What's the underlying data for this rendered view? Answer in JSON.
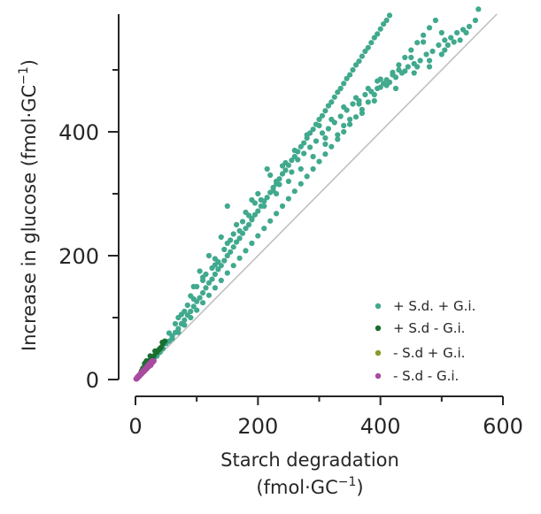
{
  "chart_data": {
    "type": "scatter",
    "title": "",
    "xlabel_line1": "Starch degradation",
    "xlabel_line2": "(fmol·GC",
    "xlabel_sup": "−1",
    "xlabel_close": ")",
    "ylabel_main": "Increase in glucose (fmol·GC",
    "ylabel_sup": "−1",
    "ylabel_close": ")",
    "xlim": [
      0,
      600
    ],
    "ylim": [
      0,
      590
    ],
    "x_ticks": [
      0,
      200,
      400,
      600
    ],
    "x_minor_ticks": [
      100,
      300,
      500
    ],
    "y_ticks": [
      0,
      200,
      400
    ],
    "y_minor_ticks": [
      100,
      300,
      500
    ],
    "reference_line": {
      "label": "",
      "x": [
        0,
        600
      ],
      "y": [
        0,
        600
      ],
      "color": "#c0c0c0"
    },
    "legend_position": "lower-right",
    "grid": false,
    "series": [
      {
        "name": "+ S.d. + G.i.",
        "color": "#41a98e",
        "points": [
          [
            20,
            22
          ],
          [
            25,
            27
          ],
          [
            30,
            34
          ],
          [
            35,
            38
          ],
          [
            40,
            44
          ],
          [
            45,
            50
          ],
          [
            50,
            58
          ],
          [
            55,
            62
          ],
          [
            60,
            70
          ],
          [
            65,
            76
          ],
          [
            70,
            82
          ],
          [
            75,
            90
          ],
          [
            80,
            96
          ],
          [
            85,
            104
          ],
          [
            90,
            110
          ],
          [
            95,
            118
          ],
          [
            100,
            126
          ],
          [
            105,
            132
          ],
          [
            110,
            140
          ],
          [
            115,
            148
          ],
          [
            120,
            156
          ],
          [
            125,
            162
          ],
          [
            130,
            170
          ],
          [
            135,
            178
          ],
          [
            140,
            184
          ],
          [
            145,
            192
          ],
          [
            150,
            200
          ],
          [
            155,
            206
          ],
          [
            160,
            214
          ],
          [
            165,
            222
          ],
          [
            170,
            228
          ],
          [
            175,
            236
          ],
          [
            180,
            244
          ],
          [
            185,
            250
          ],
          [
            190,
            258
          ],
          [
            195,
            266
          ],
          [
            200,
            272
          ],
          [
            205,
            280
          ],
          [
            210,
            288
          ],
          [
            215,
            294
          ],
          [
            220,
            302
          ],
          [
            225,
            310
          ],
          [
            230,
            316
          ],
          [
            235,
            324
          ],
          [
            240,
            332
          ],
          [
            245,
            338
          ],
          [
            250,
            346
          ],
          [
            255,
            354
          ],
          [
            260,
            360
          ],
          [
            265,
            368
          ],
          [
            270,
            376
          ],
          [
            275,
            382
          ],
          [
            280,
            390
          ],
          [
            285,
            398
          ],
          [
            290,
            404
          ],
          [
            295,
            412
          ],
          [
            300,
            420
          ],
          [
            305,
            426
          ],
          [
            310,
            434
          ],
          [
            315,
            442
          ],
          [
            320,
            448
          ],
          [
            325,
            456
          ],
          [
            330,
            464
          ],
          [
            335,
            470
          ],
          [
            340,
            478
          ],
          [
            345,
            486
          ],
          [
            350,
            492
          ],
          [
            355,
            500
          ],
          [
            360,
            508
          ],
          [
            365,
            514
          ],
          [
            370,
            522
          ],
          [
            375,
            530
          ],
          [
            380,
            536
          ],
          [
            385,
            544
          ],
          [
            390,
            552
          ],
          [
            395,
            558
          ],
          [
            400,
            566
          ],
          [
            405,
            574
          ],
          [
            410,
            580
          ],
          [
            415,
            588
          ],
          [
            60,
            66
          ],
          [
            70,
            76
          ],
          [
            80,
            88
          ],
          [
            90,
            100
          ],
          [
            100,
            112
          ],
          [
            110,
            124
          ],
          [
            120,
            136
          ],
          [
            130,
            148
          ],
          [
            140,
            160
          ],
          [
            150,
            172
          ],
          [
            160,
            184
          ],
          [
            170,
            196
          ],
          [
            180,
            208
          ],
          [
            190,
            220
          ],
          [
            200,
            232
          ],
          [
            210,
            244
          ],
          [
            220,
            256
          ],
          [
            230,
            268
          ],
          [
            240,
            280
          ],
          [
            250,
            292
          ],
          [
            260,
            304
          ],
          [
            270,
            316
          ],
          [
            280,
            328
          ],
          [
            290,
            340
          ],
          [
            300,
            352
          ],
          [
            310,
            364
          ],
          [
            320,
            376
          ],
          [
            330,
            388
          ],
          [
            340,
            400
          ],
          [
            350,
            412
          ],
          [
            360,
            424
          ],
          [
            370,
            436
          ],
          [
            380,
            448
          ],
          [
            390,
            460
          ],
          [
            400,
            472
          ],
          [
            410,
            484
          ],
          [
            420,
            496
          ],
          [
            430,
            508
          ],
          [
            440,
            520
          ],
          [
            450,
            532
          ],
          [
            460,
            544
          ],
          [
            470,
            556
          ],
          [
            480,
            568
          ],
          [
            490,
            580
          ],
          [
            80,
            110
          ],
          [
            95,
            150
          ],
          [
            105,
            175
          ],
          [
            120,
            200
          ],
          [
            140,
            230
          ],
          [
            150,
            280
          ],
          [
            165,
            250
          ],
          [
            180,
            270
          ],
          [
            200,
            300
          ],
          [
            215,
            340
          ],
          [
            230,
            320
          ],
          [
            245,
            350
          ],
          [
            260,
            370
          ],
          [
            280,
            395
          ],
          [
            300,
            410
          ],
          [
            320,
            420
          ],
          [
            340,
            440
          ],
          [
            360,
            455
          ],
          [
            380,
            470
          ],
          [
            400,
            485
          ],
          [
            420,
            492
          ],
          [
            440,
            498
          ],
          [
            460,
            505
          ],
          [
            480,
            515
          ],
          [
            500,
            525
          ],
          [
            520,
            545
          ],
          [
            540,
            560
          ],
          [
            560,
            598
          ],
          [
            500,
            560
          ],
          [
            510,
            540
          ],
          [
            470,
            545
          ],
          [
            450,
            520
          ],
          [
            430,
            500
          ],
          [
            410,
            475
          ],
          [
            390,
            450
          ],
          [
            370,
            430
          ],
          [
            350,
            420
          ],
          [
            330,
            395
          ],
          [
            310,
            380
          ],
          [
            290,
            360
          ],
          [
            270,
            340
          ],
          [
            250,
            320
          ],
          [
            230,
            300
          ],
          [
            210,
            280
          ],
          [
            190,
            260
          ],
          [
            170,
            240
          ],
          [
            150,
            220
          ],
          [
            130,
            195
          ],
          [
            110,
            165
          ],
          [
            90,
            135
          ],
          [
            75,
            105
          ],
          [
            65,
            90
          ],
          [
            55,
            75
          ],
          [
            45,
            60
          ],
          [
            35,
            45
          ],
          [
            100,
            150
          ],
          [
            110,
            160
          ],
          [
            125,
            180
          ],
          [
            135,
            190
          ],
          [
            145,
            210
          ],
          [
            155,
            225
          ],
          [
            175,
            255
          ],
          [
            185,
            265
          ],
          [
            195,
            285
          ],
          [
            205,
            290
          ],
          [
            225,
            305
          ],
          [
            235,
            315
          ],
          [
            255,
            335
          ],
          [
            265,
            355
          ],
          [
            285,
            375
          ],
          [
            295,
            385
          ],
          [
            305,
            398
          ],
          [
            315,
            405
          ],
          [
            325,
            415
          ],
          [
            335,
            425
          ],
          [
            345,
            435
          ],
          [
            355,
            445
          ],
          [
            365,
            450
          ],
          [
            375,
            460
          ],
          [
            385,
            465
          ],
          [
            395,
            470
          ],
          [
            405,
            478
          ],
          [
            415,
            480
          ],
          [
            425,
            488
          ],
          [
            435,
            495
          ],
          [
            445,
            505
          ],
          [
            455,
            510
          ],
          [
            465,
            515
          ],
          [
            475,
            525
          ],
          [
            485,
            530
          ],
          [
            495,
            540
          ],
          [
            505,
            548
          ],
          [
            515,
            552
          ],
          [
            525,
            560
          ],
          [
            535,
            565
          ],
          [
            545,
            570
          ],
          [
            555,
            580
          ],
          [
            70,
            100
          ],
          [
            85,
            120
          ],
          [
            95,
            130
          ],
          [
            115,
            170
          ],
          [
            130,
            185
          ],
          [
            160,
            235
          ],
          [
            190,
            290
          ],
          [
            220,
            330
          ],
          [
            240,
            345
          ],
          [
            275,
            365
          ],
          [
            310,
            390
          ],
          [
            340,
            410
          ],
          [
            365,
            445
          ],
          [
            395,
            482
          ],
          [
            425,
            470
          ],
          [
            455,
            495
          ],
          [
            480,
            505
          ],
          [
            505,
            532
          ],
          [
            530,
            548
          ]
        ]
      },
      {
        "name": "+ S.d - G.i.",
        "color": "#1a6e2e",
        "points": [
          [
            10,
            14
          ],
          [
            12,
            18
          ],
          [
            15,
            22
          ],
          [
            18,
            25
          ],
          [
            20,
            28
          ],
          [
            22,
            30
          ],
          [
            25,
            32
          ],
          [
            28,
            36
          ],
          [
            30,
            38
          ],
          [
            35,
            44
          ],
          [
            38,
            48
          ],
          [
            40,
            50
          ],
          [
            42,
            52
          ],
          [
            45,
            58
          ],
          [
            48,
            62
          ],
          [
            15,
            26
          ],
          [
            18,
            30
          ],
          [
            24,
            38
          ],
          [
            32,
            46
          ],
          [
            44,
            60
          ]
        ]
      },
      {
        "name": "- S.d + G.i.",
        "color": "#8a9a2a",
        "points": [
          [
            5,
            5
          ],
          [
            8,
            9
          ],
          [
            12,
            13
          ],
          [
            14,
            14
          ],
          [
            16,
            17
          ]
        ]
      },
      {
        "name": "- S.d - G.i.",
        "color": "#a84aa0",
        "points": [
          [
            1,
            1
          ],
          [
            2,
            2
          ],
          [
            3,
            3
          ],
          [
            4,
            4
          ],
          [
            5,
            5
          ],
          [
            6,
            6
          ],
          [
            7,
            7
          ],
          [
            8,
            8
          ],
          [
            9,
            9
          ],
          [
            10,
            10
          ],
          [
            11,
            11
          ],
          [
            12,
            12
          ],
          [
            13,
            13
          ],
          [
            14,
            14
          ],
          [
            15,
            15
          ],
          [
            16,
            16
          ],
          [
            17,
            17
          ],
          [
            18,
            18
          ],
          [
            19,
            19
          ],
          [
            20,
            20
          ],
          [
            21,
            21
          ],
          [
            22,
            22
          ],
          [
            23,
            23
          ],
          [
            24,
            24
          ],
          [
            25,
            25
          ],
          [
            26,
            26
          ],
          [
            27,
            27
          ],
          [
            28,
            28
          ],
          [
            29,
            29
          ],
          [
            30,
            30
          ],
          [
            3,
            4
          ],
          [
            5,
            6
          ],
          [
            7,
            8
          ],
          [
            9,
            11
          ],
          [
            12,
            14
          ],
          [
            15,
            17
          ],
          [
            18,
            20
          ],
          [
            21,
            24
          ],
          [
            24,
            27
          ],
          [
            27,
            30
          ],
          [
            2,
            1
          ],
          [
            4,
            3
          ],
          [
            6,
            5
          ],
          [
            8,
            7
          ],
          [
            10,
            9
          ],
          [
            13,
            12
          ],
          [
            16,
            15
          ],
          [
            19,
            18
          ],
          [
            22,
            21
          ],
          [
            25,
            23
          ]
        ]
      }
    ]
  }
}
